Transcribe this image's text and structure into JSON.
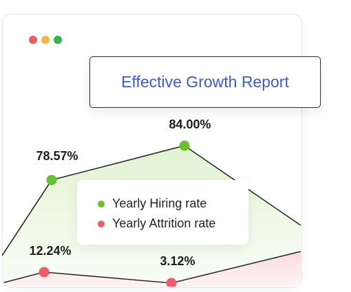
{
  "window": {
    "controls": [
      {
        "name": "close",
        "color": "#f25c5c"
      },
      {
        "name": "minimize",
        "color": "#f5b83d"
      },
      {
        "name": "maximize",
        "color": "#2fb84f"
      }
    ]
  },
  "chart_data": {
    "type": "area",
    "title": "Effective Growth Report",
    "series": [
      {
        "name": "Yearly Hiring rate",
        "color": "#6abf2e",
        "fill": "#e6f6d8",
        "points": [
          {
            "value": 78.57,
            "label": "78.57%"
          },
          {
            "value": 84.0,
            "label": "84.00%"
          }
        ]
      },
      {
        "name": "Yearly Attrition rate",
        "color": "#f25c6a",
        "fill": "#fde1e1",
        "points": [
          {
            "value": 12.24,
            "label": "12.24%"
          },
          {
            "value": 3.12,
            "label": "3.12%"
          }
        ]
      }
    ],
    "legend": {
      "placement": "center"
    }
  }
}
